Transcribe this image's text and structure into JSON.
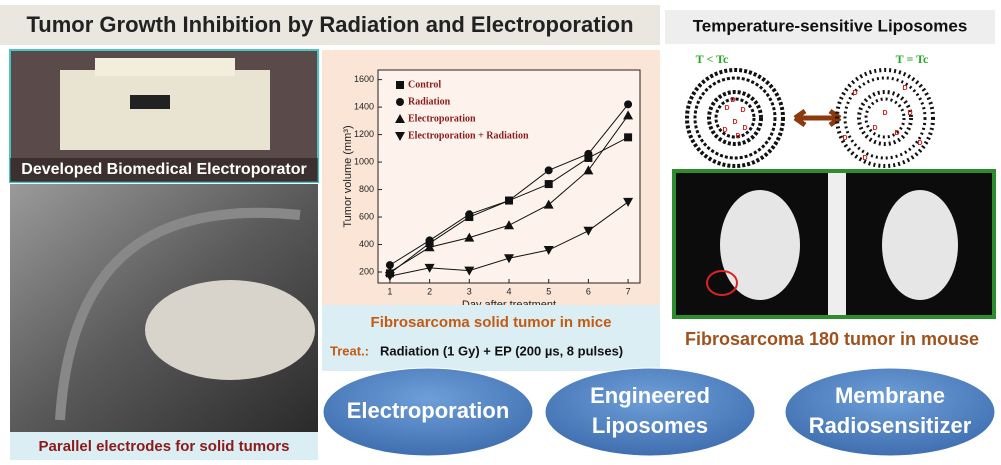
{
  "header": {
    "title": "Tumor Growth Inhibition by Radiation and Electroporation",
    "side_title": "Temperature-sensitive Liposomes"
  },
  "photos": {
    "electroporator_caption": "Developed Biomedical Electroporator",
    "electrodes_caption": "Parallel electrodes for solid tumors",
    "mouse_caption": "Fibrosarcoma 180 tumor in mouse"
  },
  "chart": {
    "type": "line",
    "xlabel": "Day after treatment",
    "ylabel": "Tumor volume (mm³)",
    "x": [
      1,
      2,
      3,
      4,
      5,
      6,
      7
    ],
    "xlim": [
      0.7,
      7.3
    ],
    "xticks": [
      1,
      2,
      3,
      4,
      5,
      6,
      7
    ],
    "ylim": [
      120,
      1670
    ],
    "yticks": [
      200,
      400,
      600,
      800,
      1000,
      1200,
      1400,
      1600
    ],
    "series": [
      {
        "name": "Control",
        "marker": "square",
        "color": "#111111",
        "values": [
          190,
          410,
          600,
          720,
          840,
          1030,
          1180
        ]
      },
      {
        "name": "Radiation",
        "marker": "circle",
        "color": "#111111",
        "values": [
          250,
          430,
          620,
          720,
          940,
          1060,
          1420
        ]
      },
      {
        "name": "Electroporation",
        "marker": "triangle-up",
        "color": "#111111",
        "values": [
          200,
          380,
          450,
          540,
          690,
          940,
          1340
        ]
      },
      {
        "name": "Electroporation + Radiation",
        "marker": "triangle-down",
        "color": "#111111",
        "values": [
          170,
          230,
          210,
          300,
          360,
          500,
          710
        ]
      }
    ]
  },
  "treatment": {
    "heading": "Fibrosarcoma solid tumor in mice",
    "label": "Treat.:",
    "text": "Radiation (1 Gy) + EP (200 µs, 8 pulses)"
  },
  "liposomes": {
    "cold_label": "T < Tc",
    "warm_label": "T = Tc",
    "drug": "D"
  },
  "ovals": [
    [
      "Electroporation"
    ],
    [
      "Engineered",
      "Liposomes"
    ],
    [
      "Membrane",
      "Radiosensitizer"
    ]
  ]
}
